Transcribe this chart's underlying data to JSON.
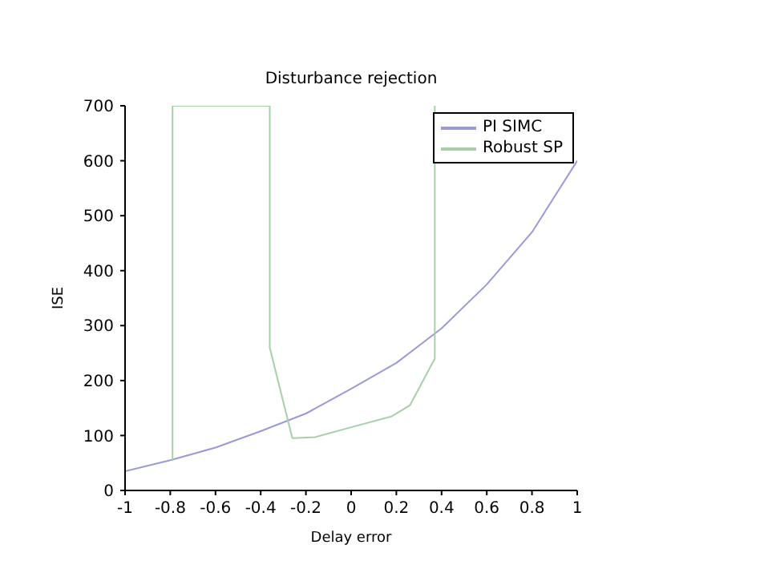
{
  "chart_data": {
    "type": "line",
    "title": "Disturbance rejection",
    "xlabel": "Delay error",
    "ylabel": "ISE",
    "xlim": [
      -1,
      1
    ],
    "ylim": [
      0,
      700
    ],
    "xticks": [
      -1,
      -0.8,
      -0.6,
      -0.4,
      -0.2,
      0,
      0.2,
      0.4,
      0.6,
      0.8,
      1
    ],
    "yticks": [
      0,
      100,
      200,
      300,
      400,
      500,
      600,
      700
    ],
    "grid": false,
    "legend": "top right",
    "marker": "none",
    "line_style": "solid",
    "series": [
      {
        "name": "PI SIMC",
        "color": "#9a9ad8",
        "x": [
          -1,
          -0.8,
          -0.6,
          -0.4,
          -0.2,
          0,
          0.2,
          0.4,
          0.6,
          0.8,
          1
        ],
        "values": [
          35,
          55,
          78,
          108,
          140,
          185,
          232,
          295,
          375,
          470,
          600
        ]
      },
      {
        "name": "Robust SP",
        "color": "#a8d0a8",
        "x": [
          -0.79,
          -0.79,
          -0.79,
          -0.36,
          -0.36,
          -0.26,
          -0.16,
          0,
          0.18,
          0.26,
          0.37,
          0.37
        ],
        "values": [
          700,
          55,
          700,
          700,
          260,
          95,
          97,
          115,
          135,
          155,
          240,
          700
        ]
      }
    ]
  }
}
